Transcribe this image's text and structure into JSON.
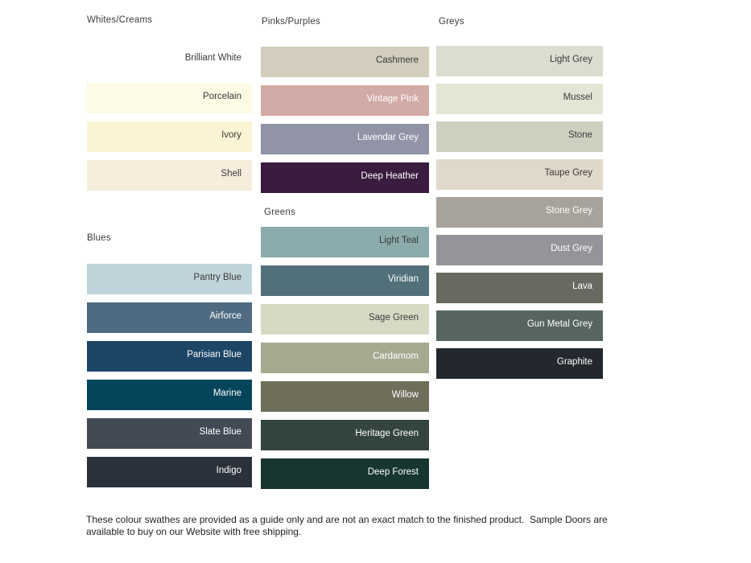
{
  "page": {
    "background": "#ffffff",
    "header_text_color": "#3b3b3b",
    "dark_label_color": "#3a3a3a",
    "light_label_color": "#ffffff"
  },
  "sections": [
    {
      "id": "whites-creams",
      "title": "Whites/Creams",
      "swatches": [
        {
          "name": "Brilliant White",
          "color": "#ffffff",
          "text_color": "#3a3a3a"
        },
        {
          "name": "Porcelain",
          "color": "#fdfae5",
          "text_color": "#3a3a3a"
        },
        {
          "name": "Ivory",
          "color": "#faf4d4",
          "text_color": "#3a3a3a"
        },
        {
          "name": "Shell",
          "color": "#f6eddc",
          "text_color": "#3a3a3a"
        }
      ]
    },
    {
      "id": "blues",
      "title": "Blues",
      "swatches": [
        {
          "name": "Pantry Blue",
          "color": "#bfd4da",
          "text_color": "#3a3a3a"
        },
        {
          "name": "Airforce",
          "color": "#4f6b81",
          "text_color": "#ffffff"
        },
        {
          "name": "Parisian Blue",
          "color": "#1d4566",
          "text_color": "#ffffff"
        },
        {
          "name": "Marine",
          "color": "#05455c",
          "text_color": "#ffffff"
        },
        {
          "name": "Slate Blue",
          "color": "#424a56",
          "text_color": "#ffffff"
        },
        {
          "name": "Indigo",
          "color": "#2a313b",
          "text_color": "#ffffff"
        }
      ]
    },
    {
      "id": "pinks-purples",
      "title": "Pinks/Purples",
      "swatches": [
        {
          "name": "Cashmere",
          "color": "#d2cdbc",
          "text_color": "#3a3a3a"
        },
        {
          "name": "Vintage Pink",
          "color": "#d3aba6",
          "text_color": "#ffffff"
        },
        {
          "name": "Lavendar Grey",
          "color": "#9094a6",
          "text_color": "#ffffff"
        },
        {
          "name": "Deep Heather",
          "color": "#391c3f",
          "text_color": "#ffffff"
        }
      ]
    },
    {
      "id": "greens",
      "title": "Greens",
      "swatches": [
        {
          "name": "Light Teal",
          "color": "#8cabac",
          "text_color": "#3a3a3a"
        },
        {
          "name": "Viridian",
          "color": "#52707a",
          "text_color": "#ffffff"
        },
        {
          "name": "Sage Green",
          "color": "#d6dac5",
          "text_color": "#3a3a3a"
        },
        {
          "name": "Cardamom",
          "color": "#a3aa8f",
          "text_color": "#ffffff"
        },
        {
          "name": "Willow",
          "color": "#6f6e5b",
          "text_color": "#ffffff"
        },
        {
          "name": "Heritage Green",
          "color": "#33453c",
          "text_color": "#ffffff"
        },
        {
          "name": "Deep Forest",
          "color": "#17362f",
          "text_color": "#ffffff"
        }
      ]
    },
    {
      "id": "greys",
      "title": "Greys",
      "swatches": [
        {
          "name": "Light Grey",
          "color": "#dbddd1",
          "text_color": "#3a3a3a"
        },
        {
          "name": "Mussel",
          "color": "#e3e5d5",
          "text_color": "#3a3a3a"
        },
        {
          "name": "Stone",
          "color": "#ced1c0",
          "text_color": "#3a3a3a"
        },
        {
          "name": "Taupe Grey",
          "color": "#e0d9ca",
          "text_color": "#3a3a3a"
        },
        {
          "name": "Stone Grey",
          "color": "#a7a29a",
          "text_color": "#ffffff"
        },
        {
          "name": "Dust Grey",
          "color": "#94959b",
          "text_color": "#ffffff"
        },
        {
          "name": "Lava",
          "color": "#696861",
          "text_color": "#ffffff"
        },
        {
          "name": "Gun Metal Grey",
          "color": "#566562",
          "text_color": "#ffffff"
        },
        {
          "name": "Graphite",
          "color": "#22282d",
          "text_color": "#ffffff"
        }
      ]
    }
  ],
  "footer": {
    "text": "These colour swathes are provided as a guide only and are not an exact match to the finished product.  Sample Doors are available to buy on our Website with free shipping."
  }
}
